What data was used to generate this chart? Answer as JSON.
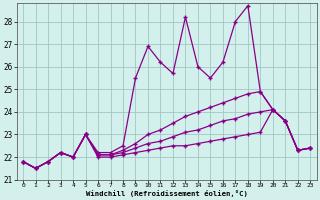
{
  "x": [
    0,
    1,
    2,
    3,
    4,
    5,
    6,
    7,
    8,
    9,
    10,
    11,
    12,
    13,
    14,
    15,
    16,
    17,
    18,
    19,
    20,
    21,
    22,
    23
  ],
  "line_spiky": [
    21.8,
    21.5,
    21.8,
    22.2,
    22.0,
    23.0,
    22.2,
    22.2,
    22.5,
    25.5,
    26.9,
    26.2,
    25.7,
    28.2,
    26.0,
    25.5,
    26.2,
    28.0,
    28.7,
    24.9,
    24.1,
    23.6,
    22.3,
    22.4
  ],
  "line_high": [
    21.8,
    21.5,
    21.8,
    22.2,
    22.0,
    23.0,
    22.1,
    22.1,
    22.3,
    22.6,
    23.0,
    23.2,
    23.5,
    23.8,
    24.0,
    24.2,
    24.4,
    24.6,
    24.8,
    24.9,
    24.1,
    23.6,
    22.3,
    22.4
  ],
  "line_mid": [
    21.8,
    21.5,
    21.8,
    22.2,
    22.0,
    23.0,
    22.1,
    22.1,
    22.2,
    22.4,
    22.6,
    22.7,
    22.9,
    23.1,
    23.2,
    23.4,
    23.6,
    23.7,
    23.9,
    24.0,
    24.1,
    23.6,
    22.3,
    22.4
  ],
  "line_low": [
    21.8,
    21.5,
    21.8,
    22.2,
    22.0,
    23.0,
    22.0,
    22.0,
    22.1,
    22.2,
    22.3,
    22.4,
    22.5,
    22.5,
    22.6,
    22.7,
    22.8,
    22.9,
    23.0,
    23.1,
    24.1,
    23.6,
    22.3,
    22.4
  ],
  "color": "#880088",
  "bg_color": "#d4f0ec",
  "grid_color": "#a0c8c4",
  "xlabel": "Windchill (Refroidissement éolien,°C)",
  "ylim": [
    21,
    28.8
  ],
  "xlim": [
    -0.5,
    23.5
  ],
  "yticks": [
    21,
    22,
    23,
    24,
    25,
    26,
    27,
    28
  ],
  "xticks": [
    0,
    1,
    2,
    3,
    4,
    5,
    6,
    7,
    8,
    9,
    10,
    11,
    12,
    13,
    14,
    15,
    16,
    17,
    18,
    19,
    20,
    21,
    22,
    23
  ]
}
